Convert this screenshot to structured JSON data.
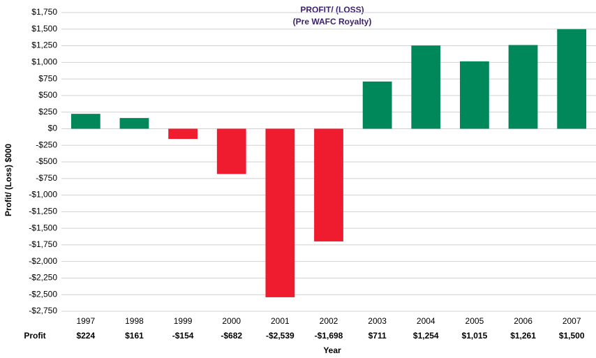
{
  "chart_data": {
    "type": "bar",
    "title": "PROFIT/ (LOSS)",
    "subtitle": "(Pre WAFC Royalty)",
    "y_label": "Profit/ (Loss) $000",
    "x_label": "Year",
    "row_label": "Profit",
    "categories": [
      "1997",
      "1998",
      "1999",
      "2000",
      "2001",
      "2002",
      "2003",
      "2004",
      "2005",
      "2006",
      "2007"
    ],
    "values": [
      224,
      161,
      -154,
      -682,
      -2539,
      -1698,
      711,
      1254,
      1015,
      1261,
      1500
    ],
    "value_labels": [
      "$224",
      "$161",
      "-$154",
      "-$682",
      "-$2,539",
      "-$1,698",
      "$711",
      "$1,254",
      "$1,015",
      "$1,261",
      "$1,500"
    ],
    "positive_color": "#00875a",
    "negative_color": "#ee1c2e",
    "ylim": [
      -2750,
      1750
    ],
    "yticks": [
      {
        "value": -2750,
        "label": "-$2,750"
      },
      {
        "value": -2500,
        "label": "-$2,500"
      },
      {
        "value": -2250,
        "label": "-$2,250"
      },
      {
        "value": -2000,
        "label": "-$2,000"
      },
      {
        "value": -1750,
        "label": "-$1,750"
      },
      {
        "value": -1500,
        "label": "-$1,500"
      },
      {
        "value": -1250,
        "label": "-$1,250"
      },
      {
        "value": -1000,
        "label": "-$1,000"
      },
      {
        "value": -750,
        "label": "-$750"
      },
      {
        "value": -500,
        "label": "-$500"
      },
      {
        "value": -250,
        "label": "-$250"
      },
      {
        "value": 0,
        "label": "$0"
      },
      {
        "value": 250,
        "label": "$250"
      },
      {
        "value": 500,
        "label": "$500"
      },
      {
        "value": 750,
        "label": "$750"
      },
      {
        "value": 1000,
        "label": "$1,000"
      },
      {
        "value": 1250,
        "label": "$1,250"
      },
      {
        "value": 1500,
        "label": "$1,500"
      },
      {
        "value": 1750,
        "label": "$1,750"
      }
    ],
    "grid": true
  }
}
